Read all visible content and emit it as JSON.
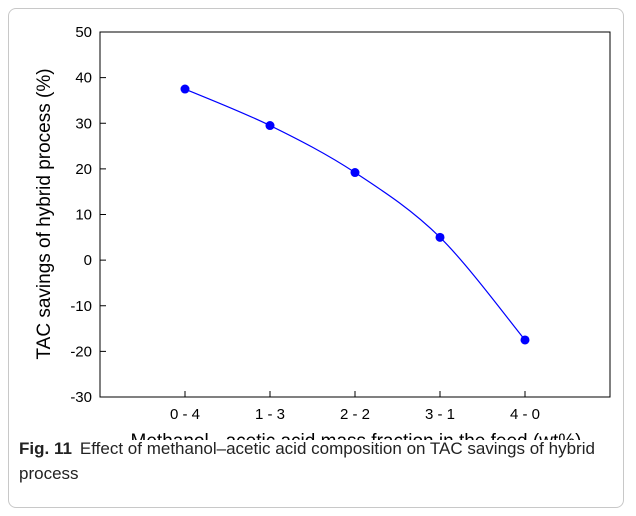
{
  "chart_data": {
    "type": "line",
    "categories": [
      "0 - 4",
      "1 - 3",
      "2 - 2",
      "3 - 1",
      "4 - 0"
    ],
    "values": [
      37.5,
      29.5,
      19.2,
      5.0,
      -17.5
    ],
    "xlabel": "Methanol - acetic acid mass fraction in the feed (wt%)",
    "ylabel": "TAC savings of hybrid process (%)",
    "ylim": [
      -30,
      50
    ],
    "yticks": [
      -30,
      -20,
      -10,
      0,
      10,
      20,
      30,
      40,
      50
    ],
    "grid": false,
    "color": "#0000ff"
  },
  "caption": {
    "label": "Fig. 11",
    "text": "Effect of methanol–acetic acid composition on TAC savings of hybrid process"
  }
}
